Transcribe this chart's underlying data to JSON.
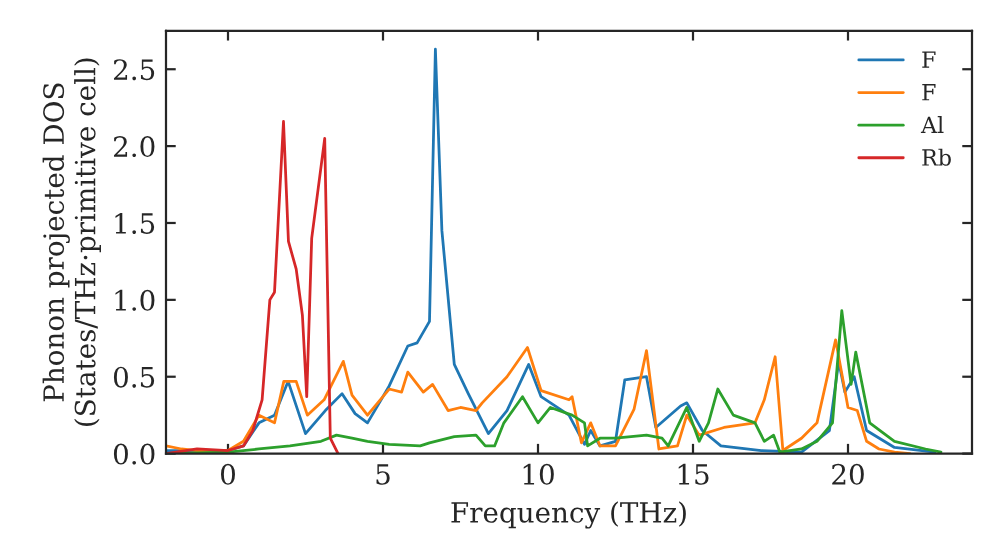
{
  "chart_data": {
    "type": "line",
    "xlabel": "Frequency (THz)",
    "ylabel": "Phonon projected DOS\n(States/THz·primitive cell)",
    "xlim": [
      -2,
      24
    ],
    "ylim": [
      0,
      2.75
    ],
    "xticks": [
      0,
      5,
      10,
      15,
      20
    ],
    "yticks": [
      {
        "value": 0,
        "label": "0.0"
      },
      0.5,
      {
        "value": 1,
        "label": "1.0"
      },
      1.5,
      {
        "value": 2,
        "label": "2.0"
      },
      2.5
    ],
    "legend": "top right",
    "grid": false,
    "series": [
      {
        "name": "F",
        "color": "#1f77b4",
        "x": [
          -2,
          -1,
          0,
          0.5,
          1.0,
          1.5,
          1.94,
          2.5,
          3.14,
          3.68,
          4.1,
          4.5,
          5.2,
          5.8,
          6.1,
          6.5,
          6.69,
          6.9,
          7.3,
          7.75,
          8.4,
          9.0,
          9.7,
          10.1,
          11.0,
          11.5,
          11.7,
          12.0,
          12.5,
          12.8,
          13.5,
          13.8,
          14.6,
          14.8,
          15.3,
          15.9,
          17.2,
          18.5,
          19.4,
          19.7,
          19.9,
          20.2,
          20.6,
          21.5,
          22.8
        ],
        "values": [
          0.02,
          0.02,
          0.02,
          0.05,
          0.2,
          0.25,
          0.47,
          0.13,
          0.28,
          0.39,
          0.26,
          0.2,
          0.44,
          0.7,
          0.72,
          0.86,
          2.63,
          1.45,
          0.58,
          0.39,
          0.13,
          0.28,
          0.58,
          0.37,
          0.25,
          0.06,
          0.15,
          0.05,
          0.08,
          0.48,
          0.5,
          0.17,
          0.31,
          0.33,
          0.15,
          0.05,
          0.02,
          0.01,
          0.15,
          0.6,
          0.4,
          0.5,
          0.15,
          0.04,
          0.01
        ]
      },
      {
        "name": "F",
        "color": "#ff7f0e",
        "x": [
          -2,
          -1.5,
          -1,
          0,
          0.5,
          1.0,
          1.5,
          1.8,
          2.2,
          2.56,
          3.1,
          3.72,
          4.0,
          4.5,
          5.2,
          5.6,
          5.8,
          6.3,
          6.6,
          7.1,
          7.5,
          8.0,
          8.2,
          9.0,
          9.66,
          10.1,
          11.0,
          11.1,
          11.4,
          11.7,
          12.0,
          12.5,
          13.1,
          13.5,
          13.9,
          14.5,
          14.8,
          15.2,
          16.0,
          17.0,
          17.3,
          17.65,
          17.9,
          18.5,
          19.0,
          19.6,
          20.0,
          20.3,
          20.6,
          21.0,
          21.5,
          22.0
        ],
        "values": [
          0.05,
          0.03,
          0.02,
          0.02,
          0.08,
          0.25,
          0.2,
          0.47,
          0.47,
          0.25,
          0.35,
          0.6,
          0.38,
          0.25,
          0.42,
          0.4,
          0.53,
          0.4,
          0.45,
          0.28,
          0.3,
          0.28,
          0.33,
          0.5,
          0.69,
          0.41,
          0.35,
          0.37,
          0.07,
          0.2,
          0.05,
          0.05,
          0.29,
          0.67,
          0.03,
          0.05,
          0.25,
          0.12,
          0.17,
          0.2,
          0.35,
          0.63,
          0.02,
          0.1,
          0.2,
          0.74,
          0.3,
          0.28,
          0.08,
          0.03,
          0.01,
          0.0
        ]
      },
      {
        "name": "Al",
        "color": "#2ca02c",
        "x": [
          -2,
          0,
          1,
          2,
          3,
          3.5,
          4,
          4.5,
          5.2,
          6.2,
          6.5,
          7.3,
          8.0,
          8.3,
          8.6,
          8.9,
          9.5,
          10.0,
          10.4,
          11.1,
          11.5,
          11.6,
          12.0,
          12.5,
          13.5,
          14.0,
          14.2,
          14.8,
          15.2,
          15.5,
          15.8,
          16.3,
          17.0,
          17.3,
          17.6,
          17.8,
          18.5,
          19.0,
          19.5,
          19.8,
          20.1,
          20.25,
          20.7,
          21.5,
          22.5,
          23.0
        ],
        "values": [
          0.0,
          0.01,
          0.03,
          0.05,
          0.08,
          0.12,
          0.1,
          0.08,
          0.06,
          0.05,
          0.07,
          0.11,
          0.12,
          0.05,
          0.05,
          0.2,
          0.37,
          0.2,
          0.3,
          0.25,
          0.2,
          0.05,
          0.1,
          0.1,
          0.12,
          0.1,
          0.05,
          0.3,
          0.08,
          0.2,
          0.42,
          0.25,
          0.2,
          0.08,
          0.12,
          0.01,
          0.03,
          0.08,
          0.2,
          0.93,
          0.45,
          0.66,
          0.2,
          0.08,
          0.03,
          0.01
        ]
      },
      {
        "name": "Rb",
        "color": "#d62728",
        "x": [
          -2,
          -1,
          0,
          0.5,
          0.8,
          1.1,
          1.35,
          1.5,
          1.79,
          1.95,
          2.2,
          2.4,
          2.54,
          2.7,
          3.12,
          3.3,
          3.55
        ],
        "values": [
          0.0,
          0.03,
          0.02,
          0.05,
          0.15,
          0.35,
          1.0,
          1.05,
          2.16,
          1.38,
          1.2,
          0.9,
          0.37,
          1.4,
          2.05,
          0.1,
          0.0
        ]
      }
    ]
  }
}
